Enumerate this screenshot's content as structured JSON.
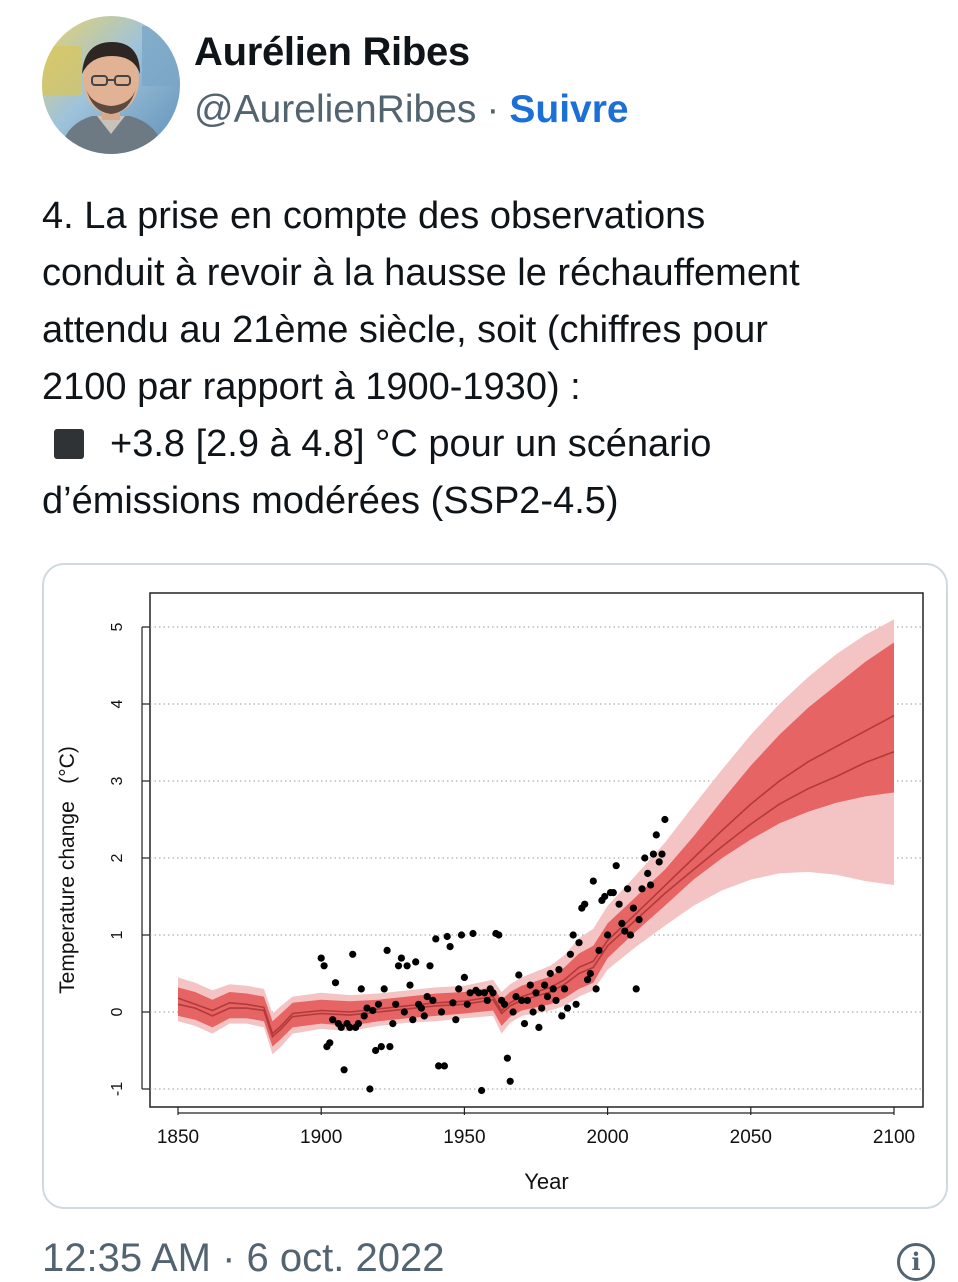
{
  "author": {
    "name": "Aurélien Ribes",
    "handle": "@AurelienRibes",
    "separator": "·",
    "follow_label": "Suivre"
  },
  "tweet": {
    "lines": [
      "4. La prise en compte des observations",
      "conduit à revoir à la hausse le réchauffement",
      "attendu au 21ème siècle, soit (chiffres pour",
      "2100 par rapport à 1900-1930) :",
      "+3.8 [2.9 à 4.8] °C pour un scénario",
      "d’émissions modérées (SSP2-4.5)"
    ],
    "bullet_icon": "black-square-icon"
  },
  "footer": {
    "timestamp": "12:35 AM · 6 oct. 2022",
    "info_icon": "i"
  },
  "colors": {
    "follow": "#1d6fd8",
    "band_outer": "#f4c4c4",
    "band_inner": "#e66464",
    "lines": "#b33a3a",
    "points": "#000000"
  },
  "chart_data": {
    "type": "line",
    "xlabel": "Year",
    "ylabel": "Temperature change   (°C)",
    "xlim": [
      1850,
      2100
    ],
    "ylim": [
      -1,
      5
    ],
    "xticks": [
      1850,
      1900,
      1950,
      2000,
      2050,
      2100
    ],
    "yticks": [
      -1,
      0,
      1,
      2,
      3,
      4,
      5
    ],
    "grid": true,
    "series": [
      {
        "kind": "upper_line",
        "x": [
          1850,
          1856,
          1862,
          1868,
          1874,
          1880,
          1883,
          1886,
          1890,
          1900,
          1910,
          1920,
          1930,
          1940,
          1950,
          1960,
          1963,
          1966,
          1970,
          1980,
          1985,
          1990,
          1995,
          2000,
          2010,
          2020,
          2030,
          2040,
          2050,
          2060,
          2070,
          2080,
          2090,
          2100
        ],
        "y": [
          0.18,
          0.1,
          0.02,
          0.12,
          0.1,
          0.06,
          -0.28,
          -0.18,
          -0.02,
          0.02,
          0.0,
          0.04,
          0.08,
          0.12,
          0.14,
          0.2,
          0.02,
          0.12,
          0.2,
          0.32,
          0.42,
          0.58,
          0.66,
          0.93,
          1.28,
          1.64,
          2.0,
          2.36,
          2.7,
          3.0,
          3.25,
          3.45,
          3.65,
          3.85
        ]
      },
      {
        "kind": "central_line",
        "x": [
          1850,
          1856,
          1862,
          1868,
          1874,
          1880,
          1883,
          1886,
          1890,
          1900,
          1910,
          1920,
          1930,
          1940,
          1950,
          1960,
          1963,
          1966,
          1970,
          1980,
          1985,
          1990,
          1995,
          2000,
          2010,
          2020,
          2030,
          2040,
          2050,
          2060,
          2070,
          2080,
          2090,
          2100
        ],
        "y": [
          0.1,
          0.05,
          -0.05,
          0.05,
          0.05,
          0.02,
          -0.32,
          -0.22,
          -0.06,
          -0.02,
          -0.04,
          0.0,
          0.04,
          0.08,
          0.1,
          0.16,
          -0.02,
          0.08,
          0.15,
          0.26,
          0.36,
          0.5,
          0.58,
          0.86,
          1.2,
          1.54,
          1.85,
          2.15,
          2.44,
          2.7,
          2.9,
          3.06,
          3.24,
          3.38
        ]
      },
      {
        "kind": "likely_band",
        "x": [
          1850,
          1856,
          1862,
          1868,
          1874,
          1880,
          1883,
          1886,
          1890,
          1900,
          1910,
          1920,
          1930,
          1940,
          1950,
          1960,
          1963,
          1966,
          1970,
          1980,
          1985,
          1990,
          1995,
          2000,
          2010,
          2020,
          2030,
          2040,
          2050,
          2060,
          2070,
          2080,
          2090,
          2100
        ],
        "lower": [
          -0.05,
          -0.1,
          -0.2,
          -0.08,
          -0.08,
          -0.12,
          -0.45,
          -0.35,
          -0.2,
          -0.15,
          -0.18,
          -0.12,
          -0.08,
          -0.05,
          -0.02,
          0.02,
          -0.18,
          -0.06,
          0.02,
          0.1,
          0.18,
          0.3,
          0.38,
          0.7,
          1.05,
          1.38,
          1.72,
          2.0,
          2.24,
          2.45,
          2.6,
          2.72,
          2.8,
          2.85
        ],
        "upper": [
          0.32,
          0.26,
          0.16,
          0.26,
          0.24,
          0.2,
          -0.12,
          -0.02,
          0.12,
          0.16,
          0.14,
          0.16,
          0.2,
          0.24,
          0.26,
          0.32,
          0.16,
          0.26,
          0.34,
          0.46,
          0.58,
          0.76,
          0.86,
          1.15,
          1.5,
          1.85,
          2.28,
          2.75,
          3.2,
          3.6,
          3.95,
          4.25,
          4.55,
          4.8
        ]
      },
      {
        "kind": "very_likely_band",
        "x": [
          1850,
          1856,
          1862,
          1868,
          1874,
          1880,
          1883,
          1886,
          1890,
          1900,
          1910,
          1920,
          1930,
          1940,
          1950,
          1960,
          1963,
          1966,
          1970,
          1980,
          1985,
          1990,
          1995,
          2000,
          2010,
          2020,
          2030,
          2040,
          2050,
          2060,
          2070,
          2080,
          2090,
          2100
        ],
        "lower": [
          -0.12,
          -0.18,
          -0.28,
          -0.15,
          -0.15,
          -0.2,
          -0.55,
          -0.45,
          -0.28,
          -0.22,
          -0.25,
          -0.18,
          -0.14,
          -0.12,
          -0.08,
          -0.05,
          -0.28,
          -0.14,
          -0.05,
          0.02,
          0.08,
          0.2,
          0.28,
          0.55,
          0.85,
          1.12,
          1.38,
          1.58,
          1.72,
          1.8,
          1.82,
          1.78,
          1.7,
          1.65
        ],
        "upper": [
          0.45,
          0.38,
          0.28,
          0.36,
          0.34,
          0.3,
          -0.02,
          0.08,
          0.2,
          0.25,
          0.22,
          0.24,
          0.28,
          0.32,
          0.34,
          0.42,
          0.26,
          0.36,
          0.45,
          0.6,
          0.74,
          0.96,
          1.08,
          1.38,
          1.78,
          2.2,
          2.68,
          3.15,
          3.6,
          4.0,
          4.35,
          4.65,
          4.9,
          5.1
        ]
      }
    ],
    "observations": {
      "x": [
        1900,
        1901,
        1902,
        1903,
        1904,
        1905,
        1906,
        1907,
        1908,
        1909,
        1910,
        1911,
        1912,
        1913,
        1914,
        1915,
        1916,
        1917,
        1918,
        1919,
        1920,
        1921,
        1922,
        1923,
        1924,
        1925,
        1926,
        1927,
        1928,
        1929,
        1930,
        1931,
        1932,
        1933,
        1934,
        1935,
        1936,
        1937,
        1938,
        1939,
        1940,
        1941,
        1942,
        1943,
        1944,
        1945,
        1946,
        1947,
        1948,
        1949,
        1950,
        1951,
        1952,
        1953,
        1954,
        1955,
        1956,
        1957,
        1958,
        1959,
        1960,
        1961,
        1962,
        1963,
        1964,
        1965,
        1966,
        1967,
        1968,
        1969,
        1970,
        1971,
        1972,
        1973,
        1974,
        1975,
        1976,
        1977,
        1978,
        1979,
        1980,
        1981,
        1982,
        1983,
        1984,
        1985,
        1986,
        1987,
        1988,
        1989,
        1990,
        1991,
        1992,
        1993,
        1994,
        1995,
        1996,
        1997,
        1998,
        1999,
        2000,
        2001,
        2002,
        2003,
        2004,
        2005,
        2006,
        2007,
        2008,
        2009,
        2010,
        2011,
        2012,
        2013,
        2014,
        2015,
        2016,
        2017,
        2018,
        2019,
        2020
      ],
      "y": [
        0.7,
        0.6,
        -0.45,
        -0.4,
        -0.1,
        0.38,
        -0.15,
        -0.2,
        -0.75,
        -0.15,
        -0.2,
        0.75,
        -0.2,
        -0.15,
        0.3,
        -0.05,
        0.05,
        -1.0,
        0.02,
        -0.5,
        0.1,
        -0.45,
        0.3,
        0.8,
        -0.45,
        -0.15,
        0.1,
        0.6,
        0.7,
        0.0,
        0.6,
        0.35,
        -0.1,
        0.65,
        0.1,
        0.05,
        -0.05,
        0.2,
        0.6,
        0.15,
        0.95,
        -0.7,
        0.0,
        -0.7,
        0.98,
        0.85,
        0.12,
        -0.1,
        0.3,
        1.0,
        0.45,
        0.1,
        0.25,
        1.02,
        0.28,
        0.25,
        -1.02,
        0.25,
        0.15,
        0.3,
        0.25,
        1.02,
        1.0,
        0.15,
        0.1,
        -0.6,
        -0.9,
        0.0,
        0.2,
        0.48,
        0.15,
        -0.15,
        0.15,
        0.35,
        0.0,
        0.25,
        -0.2,
        0.05,
        0.35,
        0.2,
        0.5,
        0.3,
        0.15,
        0.55,
        -0.05,
        0.3,
        0.05,
        0.75,
        1.0,
        0.1,
        0.9,
        1.35,
        1.4,
        0.42,
        0.5,
        1.7,
        0.3,
        0.8,
        1.45,
        1.5,
        1.0,
        1.55,
        1.55,
        1.9,
        1.4,
        1.15,
        1.05,
        1.6,
        1.0,
        1.35,
        0.3,
        1.2,
        1.6,
        2.0,
        1.8,
        1.65,
        2.05,
        2.3,
        1.95,
        2.05,
        2.5
      ]
    }
  }
}
